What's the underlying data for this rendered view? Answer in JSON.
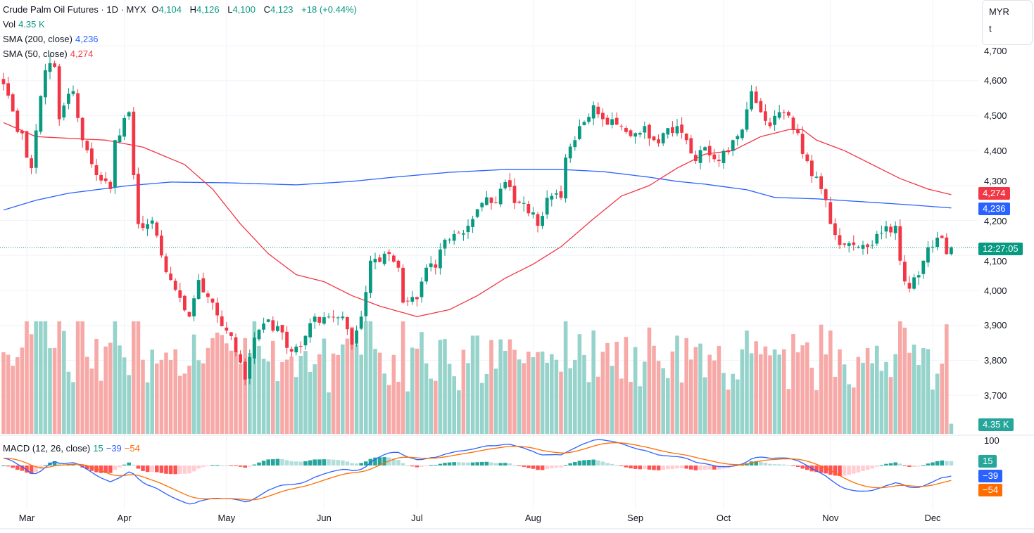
{
  "header": {
    "symbol": "Crude Palm Oil Futures · 1D · MYX",
    "open_label": "O",
    "open": "4,104",
    "high_label": "H",
    "high": "4,126",
    "low_label": "L",
    "low": "4,100",
    "close_label": "C",
    "close": "4,123",
    "change": "+18 (+0.44%)"
  },
  "indicators": {
    "vol_label": "Vol",
    "vol_value": "4.35 K",
    "sma200_label": "SMA (200, close)",
    "sma200_value": "4,236",
    "sma50_label": "SMA (50, close)",
    "sma50_value": "4,274",
    "macd_label": "MACD (12, 26, close)",
    "macd_hist": "15",
    "macd_line": "−39",
    "macd_signal": "−54"
  },
  "currency": {
    "line1": "MYR",
    "line2": "t"
  },
  "badges": {
    "sma50": "4,274",
    "sma200": "4,236",
    "countdown": "12:27:05",
    "volume": "4.35 K",
    "macd_hist": "15",
    "macd_line": "−39",
    "macd_signal": "−54"
  },
  "colors": {
    "up": "#089981",
    "down": "#f23645",
    "sma200": "#2962ff",
    "sma50": "#f23645",
    "signal": "#ff6d00"
  },
  "chart_data": {
    "type": "candlestick",
    "title": "Crude Palm Oil Futures · 1D · MYX",
    "ylabel": "MYR",
    "ylim": [
      3600,
      4700
    ],
    "price_ticks": [
      "4,700",
      "4,600",
      "4,500",
      "4,400",
      "4,300",
      "4,200",
      "4,100",
      "4,000",
      "3,900",
      "3,800",
      "3,700"
    ],
    "price_tick_values": [
      4700,
      4600,
      4500,
      4400,
      4300,
      4200,
      4100,
      4000,
      3900,
      3800,
      3700
    ],
    "macd_tick": "100",
    "months": [
      {
        "label": "Mar",
        "bar": 5
      },
      {
        "label": "Apr",
        "bar": 26
      },
      {
        "label": "May",
        "bar": 48
      },
      {
        "label": "Jun",
        "bar": 69
      },
      {
        "label": "Jul",
        "bar": 89
      },
      {
        "label": "Aug",
        "bar": 114
      },
      {
        "label": "Sep",
        "bar": 136
      },
      {
        "label": "Oct",
        "bar": 155
      },
      {
        "label": "Nov",
        "bar": 178
      },
      {
        "label": "Dec",
        "bar": 200
      }
    ],
    "bar_count": 205,
    "close_anchors": [
      [
        0,
        4590
      ],
      [
        6,
        4350
      ],
      [
        9,
        4630
      ],
      [
        11,
        4640
      ],
      [
        12,
        4490
      ],
      [
        15,
        4570
      ],
      [
        17,
        4430
      ],
      [
        20,
        4330
      ],
      [
        23,
        4290
      ],
      [
        24,
        4430
      ],
      [
        27,
        4510
      ],
      [
        28,
        4330
      ],
      [
        29,
        4190
      ],
      [
        32,
        4200
      ],
      [
        34,
        4100
      ],
      [
        36,
        4030
      ],
      [
        40,
        3925
      ],
      [
        42,
        4030
      ],
      [
        45,
        3965
      ],
      [
        48,
        3885
      ],
      [
        52,
        3745
      ],
      [
        54,
        3865
      ],
      [
        56,
        3905
      ],
      [
        60,
        3880
      ],
      [
        62,
        3825
      ],
      [
        65,
        3870
      ],
      [
        67,
        3925
      ],
      [
        70,
        3925
      ],
      [
        73,
        3925
      ],
      [
        75,
        3845
      ],
      [
        77,
        3925
      ],
      [
        79,
        4085
      ],
      [
        82,
        4105
      ],
      [
        85,
        4065
      ],
      [
        86,
        3965
      ],
      [
        89,
        3975
      ],
      [
        91,
        4065
      ],
      [
        93,
        4065
      ],
      [
        95,
        4145
      ],
      [
        98,
        4165
      ],
      [
        100,
        4185
      ],
      [
        103,
        4250
      ],
      [
        105,
        4250
      ],
      [
        108,
        4310
      ],
      [
        110,
        4250
      ],
      [
        112,
        4250
      ],
      [
        115,
        4185
      ],
      [
        117,
        4265
      ],
      [
        120,
        4265
      ],
      [
        121,
        4380
      ],
      [
        123,
        4430
      ],
      [
        124,
        4470
      ],
      [
        127,
        4530
      ],
      [
        129,
        4490
      ],
      [
        131,
        4490
      ],
      [
        133,
        4470
      ],
      [
        136,
        4450
      ],
      [
        138,
        4470
      ],
      [
        140,
        4430
      ],
      [
        142,
        4450
      ],
      [
        145,
        4470
      ],
      [
        147,
        4430
      ],
      [
        149,
        4370
      ],
      [
        151,
        4410
      ],
      [
        154,
        4370
      ],
      [
        157,
        4430
      ],
      [
        159,
        4460
      ],
      [
        161,
        4570
      ],
      [
        163,
        4510
      ],
      [
        165,
        4470
      ],
      [
        167,
        4510
      ],
      [
        169,
        4500
      ],
      [
        171,
        4450
      ],
      [
        173,
        4370
      ],
      [
        176,
        4290
      ],
      [
        178,
        4190
      ],
      [
        180,
        4130
      ],
      [
        183,
        4130
      ],
      [
        185,
        4130
      ],
      [
        187,
        4130
      ],
      [
        189,
        4165
      ],
      [
        192,
        4185
      ],
      [
        193,
        4085
      ],
      [
        195,
        4005
      ],
      [
        198,
        4085
      ],
      [
        200,
        4125
      ],
      [
        202,
        4150
      ],
      [
        203,
        4104
      ],
      [
        204,
        4123
      ]
    ],
    "last_bar": {
      "open": 4104,
      "high": 4126,
      "low": 4100,
      "close": 4123,
      "volume": 4350
    },
    "sma50_anchors": [
      [
        0,
        4480
      ],
      [
        7,
        4440
      ],
      [
        22,
        4430
      ],
      [
        30,
        4410
      ],
      [
        39,
        4360
      ],
      [
        45,
        4290
      ],
      [
        51,
        4190
      ],
      [
        57,
        4105
      ],
      [
        63,
        4045
      ],
      [
        69,
        4025
      ],
      [
        75,
        3985
      ],
      [
        81,
        3955
      ],
      [
        89,
        3925
      ],
      [
        96,
        3945
      ],
      [
        102,
        3985
      ],
      [
        108,
        4035
      ],
      [
        114,
        4075
      ],
      [
        120,
        4125
      ],
      [
        127,
        4205
      ],
      [
        133,
        4270
      ],
      [
        139,
        4300
      ],
      [
        145,
        4350
      ],
      [
        151,
        4390
      ],
      [
        157,
        4400
      ],
      [
        163,
        4440
      ],
      [
        169,
        4460
      ],
      [
        172,
        4460
      ],
      [
        175,
        4430
      ],
      [
        181,
        4400
      ],
      [
        187,
        4360
      ],
      [
        193,
        4320
      ],
      [
        199,
        4290
      ],
      [
        204,
        4274
      ]
    ],
    "sma200_anchors": [
      [
        0,
        4230
      ],
      [
        7,
        4258
      ],
      [
        14,
        4278
      ],
      [
        27,
        4300
      ],
      [
        36,
        4310
      ],
      [
        48,
        4308
      ],
      [
        63,
        4302
      ],
      [
        75,
        4312
      ],
      [
        84,
        4324
      ],
      [
        96,
        4338
      ],
      [
        108,
        4346
      ],
      [
        120,
        4346
      ],
      [
        129,
        4340
      ],
      [
        139,
        4324
      ],
      [
        145,
        4312
      ],
      [
        151,
        4304
      ],
      [
        160,
        4288
      ],
      [
        166,
        4266
      ],
      [
        175,
        4262
      ],
      [
        187,
        4252
      ],
      [
        196,
        4244
      ],
      [
        204,
        4236
      ]
    ]
  }
}
